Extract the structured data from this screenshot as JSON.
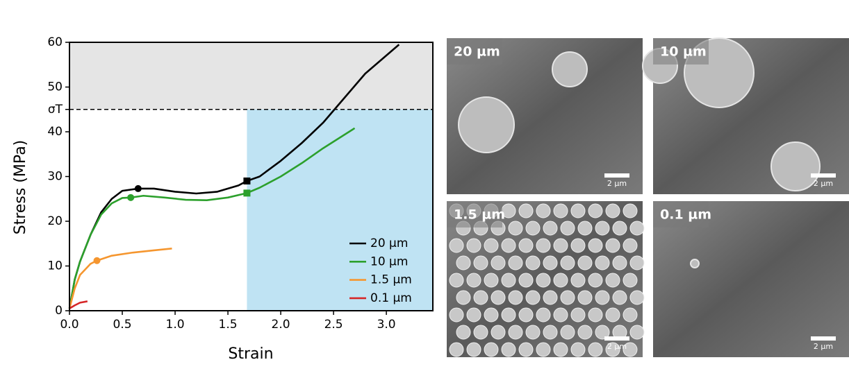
{
  "chart_data": {
    "type": "line",
    "xlabel": "Strain",
    "ylabel": "Stress (MPa)",
    "xlim": [
      0,
      3.44
    ],
    "ylim": [
      0,
      60
    ],
    "xticks": [
      {
        "value": 0,
        "label": "0.0"
      },
      0.5,
      {
        "value": 1,
        "label": "1.0"
      },
      1.5,
      {
        "value": 2,
        "label": "2.0"
      },
      2.5,
      {
        "value": 3,
        "label": "3.0"
      }
    ],
    "yticks": [
      0,
      10,
      20,
      30,
      40,
      {
        "value": 45,
        "label": "σT"
      },
      50,
      60
    ],
    "threshold_color": "#e5e5e5",
    "highlight_color": "#bfe3f3",
    "highlight_xstart": 1.68,
    "legend": "lower right",
    "series": [
      {
        "name": "20 µm",
        "color": "#000000",
        "x": [
          0,
          0.05,
          0.1,
          0.2,
          0.3,
          0.4,
          0.5,
          0.65,
          0.8,
          1.0,
          1.2,
          1.4,
          1.6,
          1.68,
          1.8,
          2.0,
          2.2,
          2.4,
          2.6,
          2.8,
          3.12
        ],
        "values": [
          0.5,
          7,
          11,
          17,
          22,
          25,
          26.8,
          27.3,
          27.3,
          26.6,
          26.2,
          26.6,
          28,
          29,
          30,
          33.5,
          37.5,
          42,
          47.5,
          53,
          59.5
        ],
        "markers": [
          {
            "shape": "circle",
            "x": 0.65,
            "y": 27.3
          },
          {
            "shape": "square",
            "x": 1.68,
            "y": 29
          }
        ]
      },
      {
        "name": "10 µm",
        "color": "#2ca02c",
        "x": [
          0,
          0.05,
          0.1,
          0.2,
          0.3,
          0.4,
          0.5,
          0.58,
          0.7,
          0.9,
          1.1,
          1.3,
          1.5,
          1.68,
          1.8,
          2.0,
          2.2,
          2.4,
          2.7
        ],
        "values": [
          0.5,
          7,
          11,
          17,
          21.5,
          24,
          25.2,
          25.3,
          25.7,
          25.3,
          24.8,
          24.7,
          25.3,
          26.3,
          27.5,
          30,
          33,
          36.3,
          40.8
        ],
        "markers": [
          {
            "shape": "circle",
            "x": 0.58,
            "y": 25.3
          },
          {
            "shape": "square",
            "x": 1.68,
            "y": 26.3
          }
        ]
      },
      {
        "name": "1.5 µm",
        "color": "#f5962f",
        "x": [
          0,
          0.05,
          0.1,
          0.2,
          0.26,
          0.4,
          0.6,
          0.8,
          0.97
        ],
        "values": [
          0.5,
          5,
          8,
          10.5,
          11.2,
          12.3,
          13,
          13.5,
          13.9
        ],
        "markers": [
          {
            "shape": "circle",
            "x": 0.26,
            "y": 11.2
          }
        ]
      },
      {
        "name": "0.1 µm",
        "color": "#d62728",
        "x": [
          0,
          0.05,
          0.1,
          0.17
        ],
        "values": [
          0.5,
          1.2,
          1.8,
          2.1
        ],
        "markers": []
      }
    ]
  },
  "images": [
    {
      "label": "20 µm",
      "scale": "2 µm"
    },
    {
      "label": "10 µm",
      "scale": "2 µm"
    },
    {
      "label": "1.5 µm",
      "scale": "2 µm"
    },
    {
      "label": "0.1 µm",
      "scale": "2 µm"
    }
  ]
}
